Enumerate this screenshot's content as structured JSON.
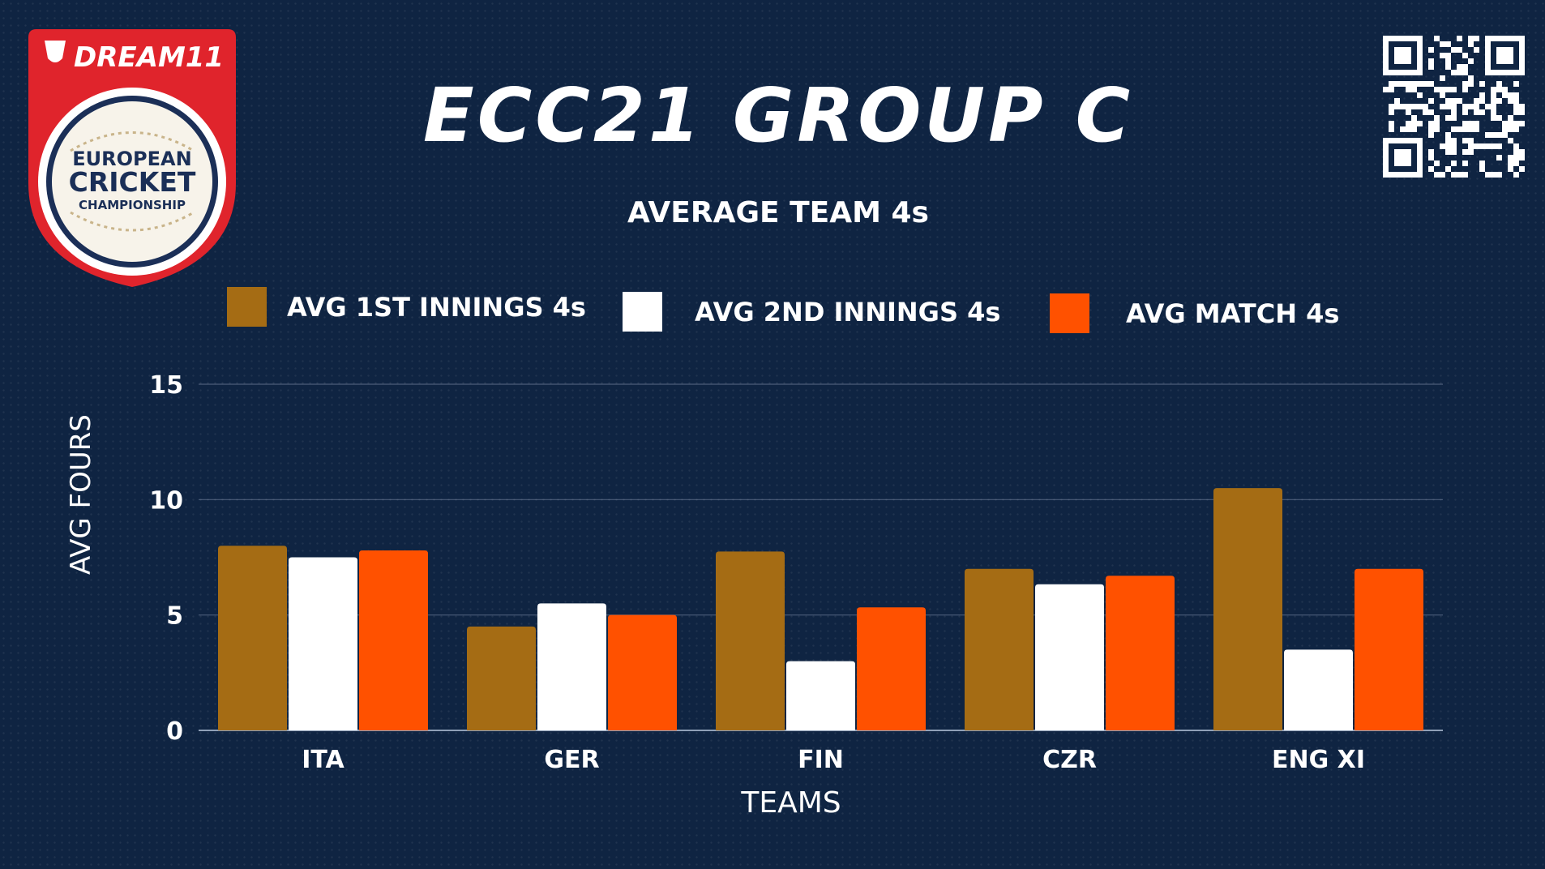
{
  "logo": {
    "brand": "DREAM11",
    "line1": "EUROPEAN",
    "line2": "CRICKET",
    "line3": "CHAMPIONSHIP",
    "colors": {
      "badge": "#e0242c",
      "ring": "#ffffff",
      "inner": "#ffffff",
      "text": "#1b2f57"
    }
  },
  "qr": {
    "icon": "qr-code-icon"
  },
  "title": "ECC21 GROUP C",
  "subtitle": "AVERAGE TEAM 4s",
  "legend": [
    {
      "label": "AVG 1ST INNINGS 4s",
      "color": "#a56c14"
    },
    {
      "label": "AVG 2ND INNINGS 4s",
      "color": "#ffffff"
    },
    {
      "label": "AVG MATCH 4s",
      "color": "#ff5100"
    }
  ],
  "chart_data": {
    "type": "bar",
    "title": "AVERAGE TEAM 4s",
    "xlabel": "TEAMS",
    "ylabel": "AVG FOURS",
    "categories": [
      "ITA",
      "GER",
      "FIN",
      "CZR",
      "ENG XI"
    ],
    "series": [
      {
        "name": "AVG 1ST INNINGS 4s",
        "color": "#a56c14",
        "values": [
          8,
          4.5,
          7.75,
          7,
          10.5
        ]
      },
      {
        "name": "AVG 2ND INNINGS 4s",
        "color": "#ffffff",
        "values": [
          7.5,
          5.5,
          3,
          6.33,
          3.5
        ]
      },
      {
        "name": "AVG MATCH 4s",
        "color": "#ff5100",
        "values": [
          7.8,
          5,
          5.33,
          6.7,
          7
        ]
      }
    ],
    "ylim": [
      0,
      15
    ],
    "yticks": [
      0,
      5,
      10,
      15
    ],
    "grid": true,
    "legend_position": "top"
  }
}
